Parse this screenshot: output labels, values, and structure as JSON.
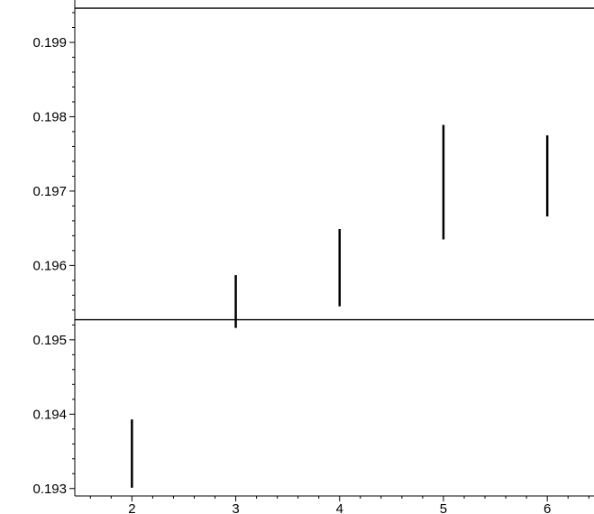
{
  "chart_data": {
    "type": "interval",
    "title": "",
    "xlabel": "",
    "ylabel": "",
    "xlim": [
      1.45,
      6.45
    ],
    "ylim": [
      0.1929,
      0.19957
    ],
    "x_ticks": [
      "2",
      "3",
      "4",
      "5",
      "6"
    ],
    "y_ticks": [
      "0.193",
      "0.194",
      "0.195",
      "0.196",
      "0.197",
      "0.198",
      "0.199"
    ],
    "intervals": [
      {
        "x": 2,
        "low": 0.19301,
        "high": 0.19393
      },
      {
        "x": 3,
        "low": 0.19516,
        "high": 0.19587
      },
      {
        "x": 4,
        "low": 0.19545,
        "high": 0.19649
      },
      {
        "x": 5,
        "low": 0.19635,
        "high": 0.19789
      },
      {
        "x": 6,
        "low": 0.19666,
        "high": 0.19775
      }
    ],
    "reference_lines": [
      0.19946,
      0.19527
    ],
    "grid": false,
    "color": "#000000"
  }
}
